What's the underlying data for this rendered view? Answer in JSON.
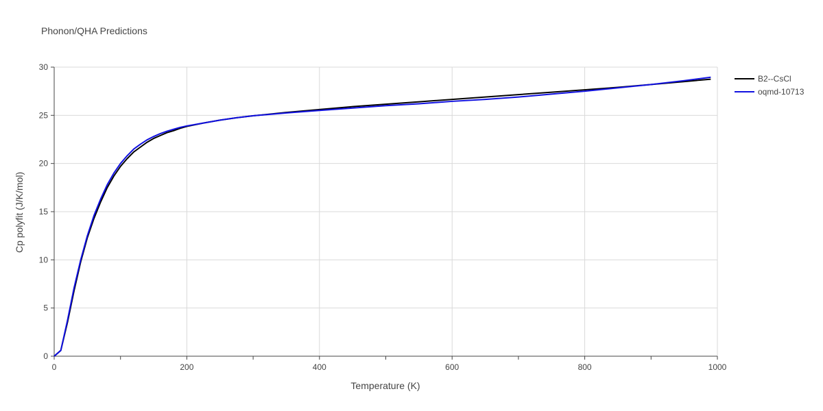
{
  "chart_data": {
    "type": "line",
    "title": "Phonon/QHA Predictions",
    "xlabel": "Temperature (K)",
    "ylabel": "Cp polyfit (J/K/mol)",
    "xlim": [
      0,
      1000
    ],
    "ylim": [
      0,
      30
    ],
    "x_ticks": [
      0,
      200,
      400,
      600,
      800,
      1000
    ],
    "y_ticks": [
      0,
      5,
      10,
      15,
      20,
      25,
      30
    ],
    "x_minor_ticks": [
      0,
      100,
      200,
      300,
      400,
      500,
      600,
      700,
      800,
      900,
      1000
    ],
    "y_minor_ticks": [
      0,
      5,
      10,
      15,
      20,
      25,
      30
    ],
    "grid": true,
    "legend_position": "top-right",
    "series": [
      {
        "name": "B2--CsCl",
        "color": "#000000",
        "x": [
          0,
          10,
          20,
          30,
          40,
          50,
          60,
          70,
          80,
          90,
          100,
          110,
          120,
          130,
          140,
          150,
          160,
          170,
          180,
          190,
          200,
          225,
          250,
          275,
          300,
          350,
          400,
          450,
          500,
          550,
          600,
          650,
          700,
          750,
          800,
          850,
          900,
          950,
          990
        ],
        "y": [
          0,
          0.6,
          3.5,
          6.8,
          9.8,
          12.3,
          14.3,
          16.0,
          17.5,
          18.7,
          19.7,
          20.5,
          21.2,
          21.7,
          22.2,
          22.6,
          22.9,
          23.2,
          23.4,
          23.65,
          23.85,
          24.2,
          24.5,
          24.75,
          24.95,
          25.3,
          25.6,
          25.9,
          26.15,
          26.4,
          26.65,
          26.9,
          27.15,
          27.4,
          27.65,
          27.9,
          28.2,
          28.5,
          28.75
        ]
      },
      {
        "name": "oqmd-10713",
        "color": "#1010e0",
        "x": [
          0,
          10,
          20,
          30,
          40,
          50,
          60,
          70,
          80,
          90,
          100,
          110,
          120,
          130,
          140,
          150,
          160,
          170,
          180,
          190,
          200,
          225,
          250,
          275,
          300,
          350,
          400,
          450,
          500,
          550,
          600,
          650,
          700,
          750,
          800,
          850,
          900,
          950,
          990
        ],
        "y": [
          0,
          0.6,
          3.7,
          7.1,
          10.0,
          12.5,
          14.6,
          16.3,
          17.8,
          19.0,
          20.0,
          20.8,
          21.5,
          22.0,
          22.45,
          22.8,
          23.1,
          23.35,
          23.55,
          23.75,
          23.9,
          24.2,
          24.5,
          24.75,
          24.95,
          25.25,
          25.5,
          25.75,
          26.0,
          26.2,
          26.45,
          26.65,
          26.9,
          27.2,
          27.5,
          27.85,
          28.2,
          28.6,
          28.95
        ]
      }
    ]
  }
}
